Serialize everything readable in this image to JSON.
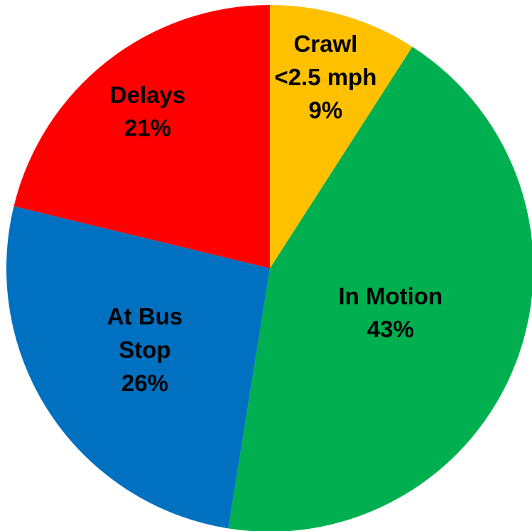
{
  "chart_data": {
    "type": "pie",
    "categories": [
      "Crawl\n<2.5 mph",
      "In Motion",
      "At Bus\nStop",
      "Delays"
    ],
    "values": [
      9,
      43,
      26,
      21
    ],
    "value_labels": [
      "9%",
      "43%",
      "26%",
      "21%"
    ],
    "colors": [
      "#FFC000",
      "#00B050",
      "#0070C0",
      "#FF0000"
    ]
  }
}
